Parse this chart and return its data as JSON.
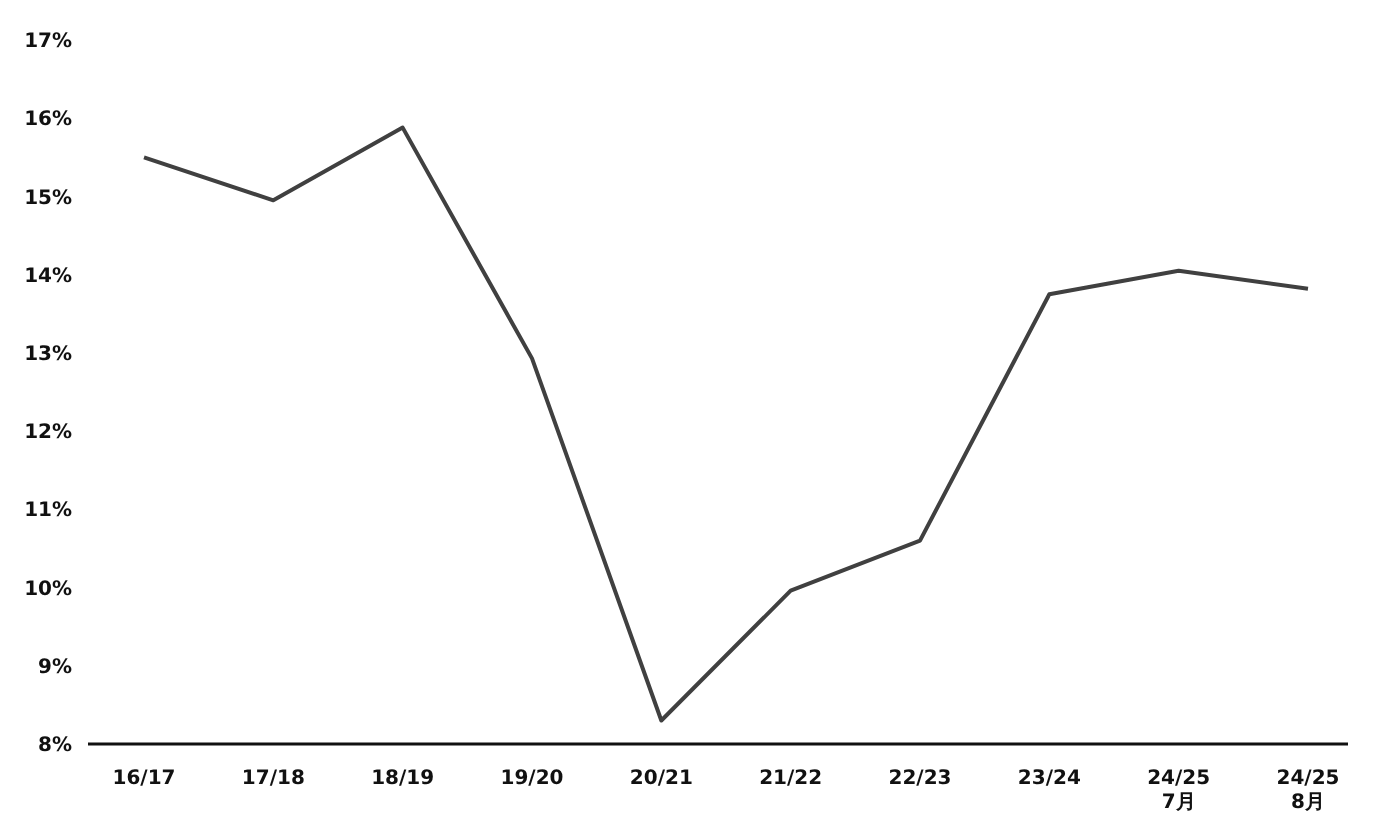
{
  "chart_data": {
    "type": "line",
    "categories": [
      "16/17",
      "17/18",
      "18/19",
      "19/20",
      "20/21",
      "21/22",
      "22/23",
      "23/24",
      "24/25\n7月",
      "24/25\n8月"
    ],
    "series": [
      {
        "color": "#404040",
        "values": [
          15.5,
          14.95,
          15.88,
          12.93,
          8.3,
          9.96,
          10.6,
          13.75,
          14.05,
          13.82
        ]
      }
    ],
    "ylim": [
      8,
      17
    ],
    "yticks": [
      {
        "value": 8,
        "label": "8%"
      },
      {
        "value": 9,
        "label": "9%"
      },
      {
        "value": 10,
        "label": "10%"
      },
      {
        "value": 11,
        "label": "11%"
      },
      {
        "value": 12,
        "label": "12%"
      },
      {
        "value": 13,
        "label": "13%"
      },
      {
        "value": 14,
        "label": "14%"
      },
      {
        "value": 15,
        "label": "15%"
      },
      {
        "value": 16,
        "label": "16%"
      },
      {
        "value": 17,
        "label": "17%"
      }
    ],
    "grid": false,
    "legend": false,
    "marker": "none",
    "line_style": "solid"
  }
}
